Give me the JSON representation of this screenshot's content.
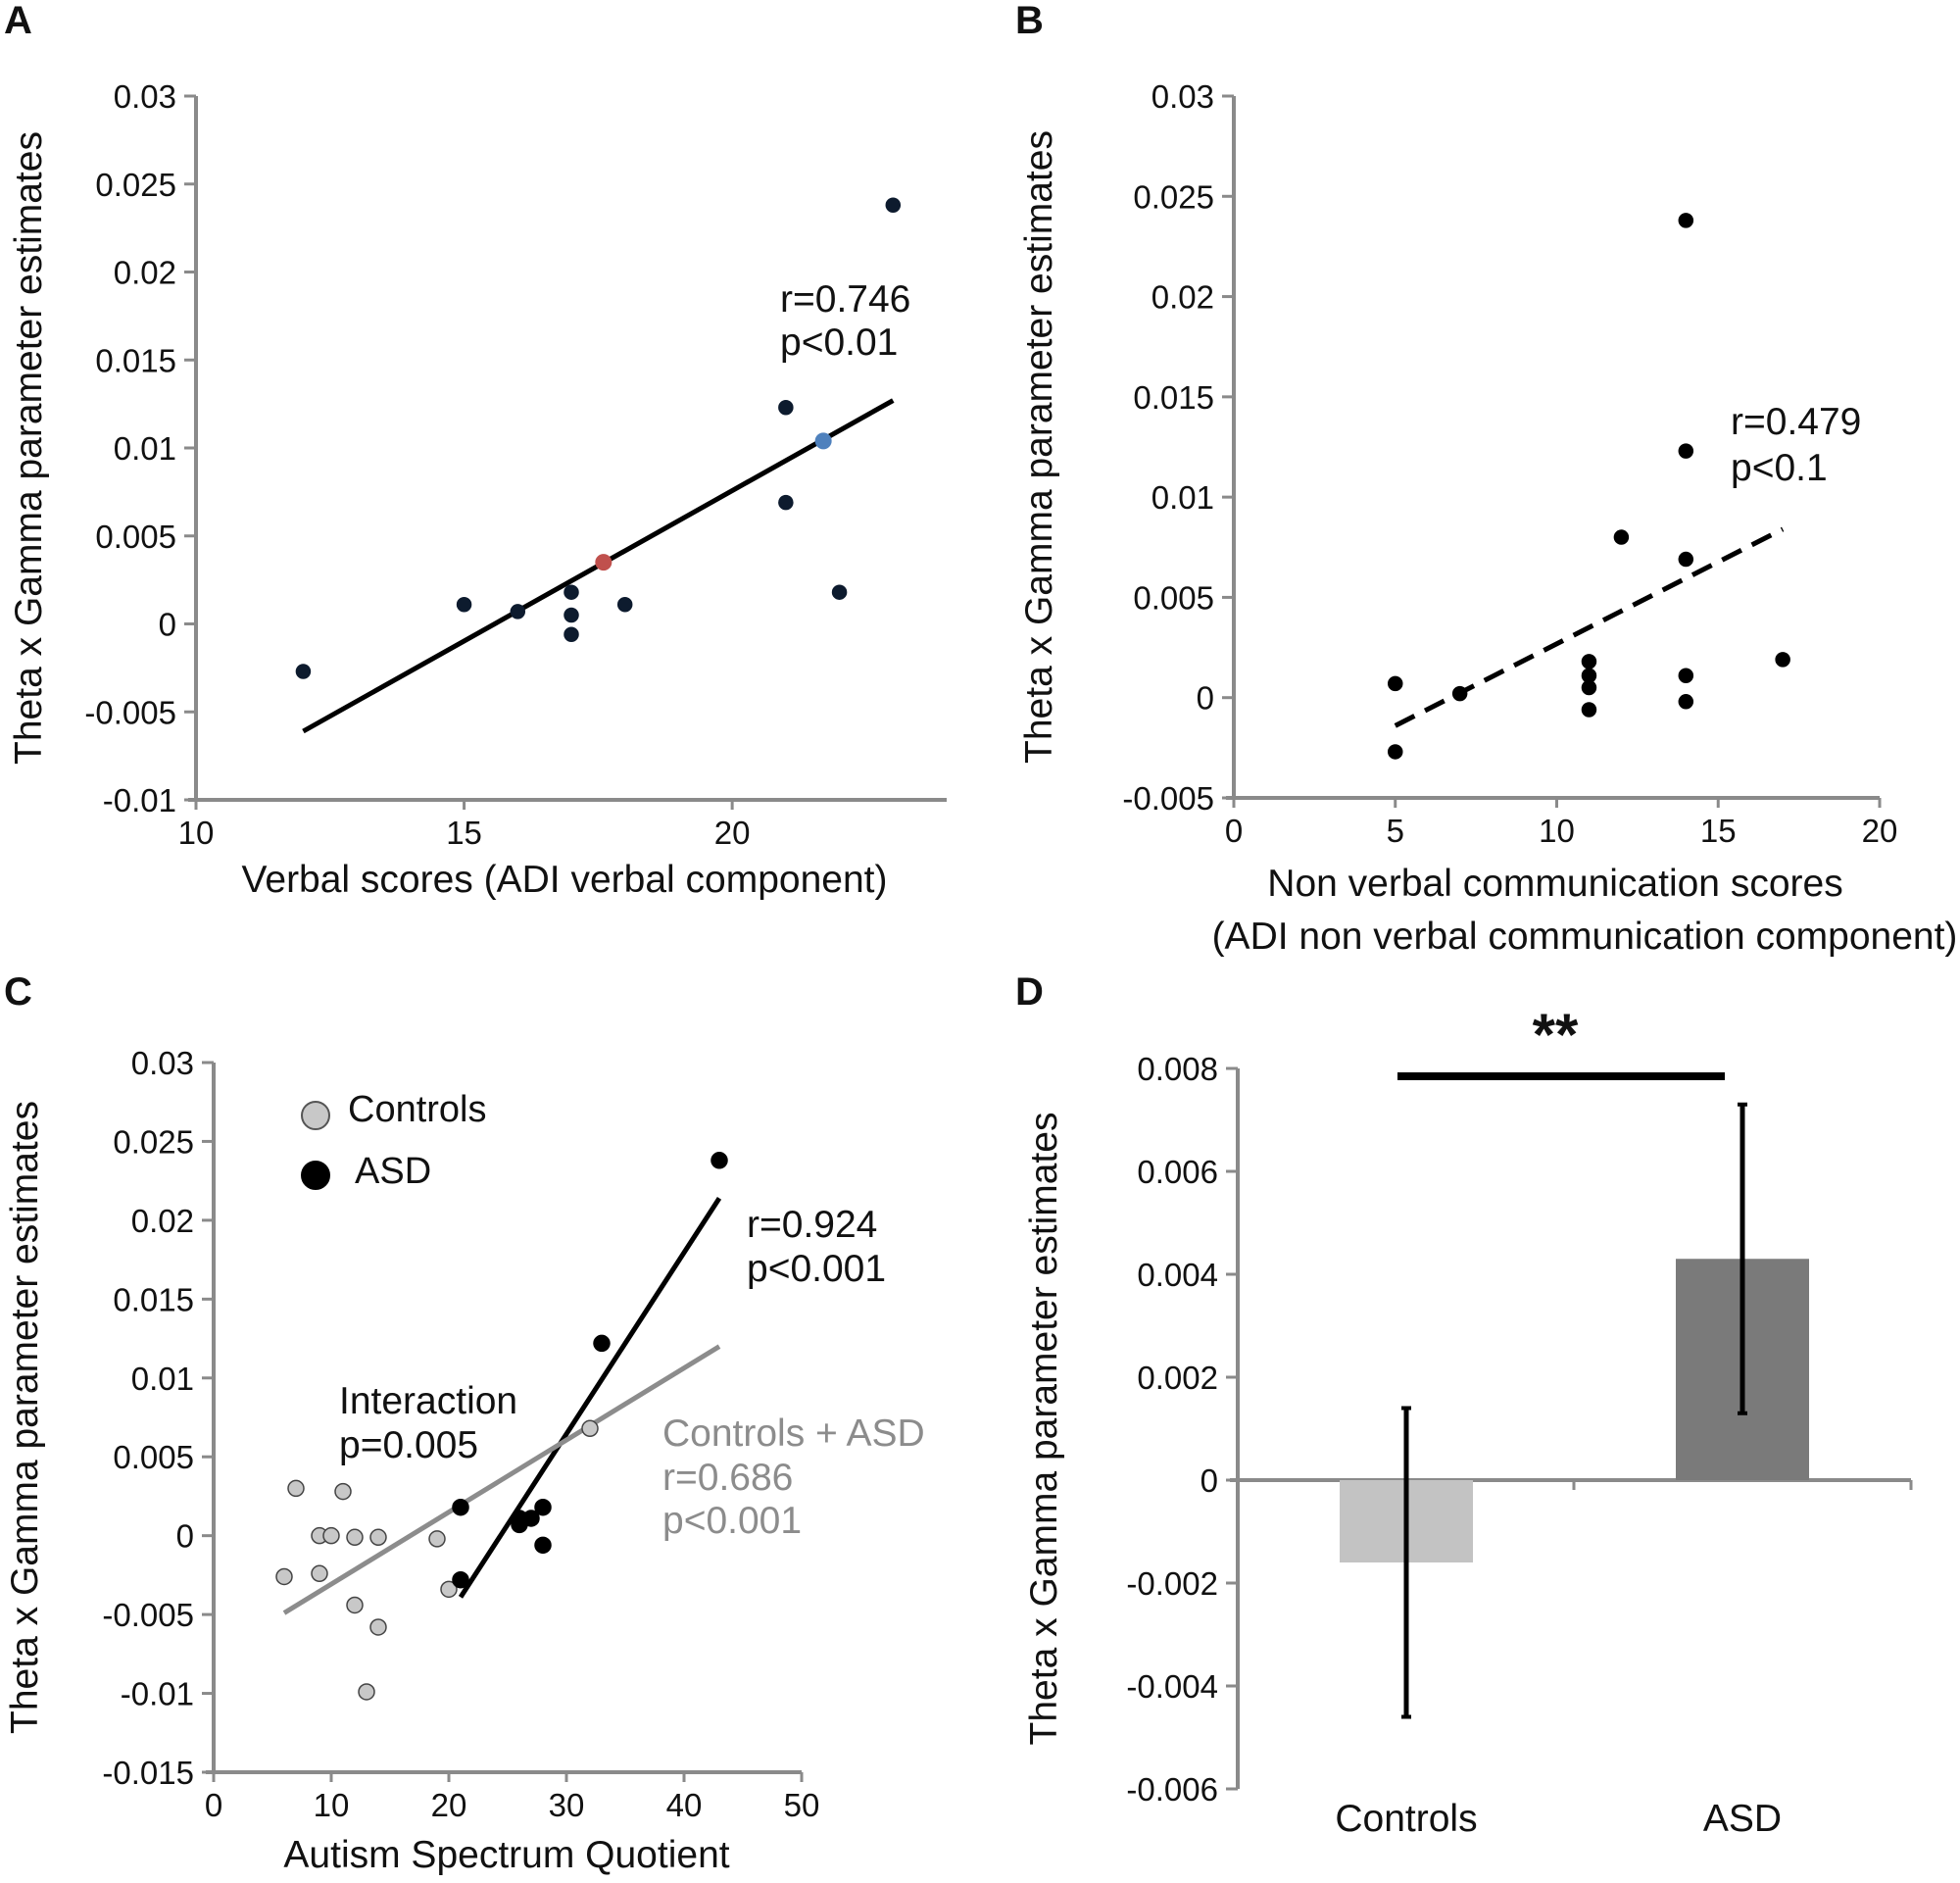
{
  "chart_data": [
    {
      "panel": "A",
      "type": "scatter",
      "xlabel": "Verbal scores (ADI verbal component)",
      "ylabel": "Theta x Gamma parameter estimates",
      "xlim": [
        10,
        24
      ],
      "ylim": [
        -0.01,
        0.03
      ],
      "xticks": [
        "10",
        "15",
        "20"
      ],
      "yticks": [
        "-0.01",
        "-0.005",
        "0",
        "0.005",
        "0.01",
        "0.015",
        "0.02",
        "0.025",
        "0.03"
      ],
      "points": [
        {
          "x": 12,
          "y": -0.0027
        },
        {
          "x": 15,
          "y": 0.0011
        },
        {
          "x": 16,
          "y": 0.0007
        },
        {
          "x": 17,
          "y": 0.0018
        },
        {
          "x": 17,
          "y": 0.0005
        },
        {
          "x": 17,
          "y": -0.0006
        },
        {
          "x": 18,
          "y": 0.0011
        },
        {
          "x": 21,
          "y": 0.0123
        },
        {
          "x": 21,
          "y": 0.0069
        },
        {
          "x": 22,
          "y": 0.0018
        },
        {
          "x": 23,
          "y": 0.0238
        }
      ],
      "highlighted_points": [
        {
          "x": 17.6,
          "y": 0.0035,
          "color": "#c0504d"
        },
        {
          "x": 21.7,
          "y": 0.0104,
          "color": "#4f81bd"
        }
      ],
      "fit_line": {
        "x": [
          12,
          23
        ],
        "y": [
          -0.0061,
          0.0127
        ],
        "style": "solid"
      },
      "annotation": [
        "r=0.746",
        "p<0.01"
      ]
    },
    {
      "panel": "B",
      "type": "scatter",
      "xlabel": "Non verbal communication scores",
      "xlabel2": "(ADI non verbal communication component)",
      "ylabel": "Theta x Gamma parameter estimates",
      "xlim": [
        0,
        20
      ],
      "ylim": [
        -0.005,
        0.03
      ],
      "xticks": [
        "0",
        "5",
        "10",
        "15",
        "20"
      ],
      "yticks": [
        "-0.005",
        "0",
        "0.005",
        "0.01",
        "0.015",
        "0.02",
        "0.025",
        "0.03"
      ],
      "points": [
        {
          "x": 5,
          "y": 0.0007
        },
        {
          "x": 5,
          "y": -0.0027
        },
        {
          "x": 7,
          "y": 0.0002
        },
        {
          "x": 11,
          "y": 0.0018
        },
        {
          "x": 11,
          "y": 0.0011
        },
        {
          "x": 11,
          "y": 0.0005
        },
        {
          "x": 11,
          "y": -0.0006
        },
        {
          "x": 12,
          "y": 0.008
        },
        {
          "x": 14,
          "y": 0.0238
        },
        {
          "x": 14,
          "y": 0.0123
        },
        {
          "x": 14,
          "y": 0.0069
        },
        {
          "x": 14,
          "y": 0.0011
        },
        {
          "x": 14,
          "y": -0.0002
        },
        {
          "x": 17,
          "y": 0.0019
        }
      ],
      "fit_line": {
        "x": [
          5,
          17
        ],
        "y": [
          -0.0014,
          0.0084
        ],
        "style": "dashed"
      },
      "annotation": [
        "r=0.479",
        "p<0.1"
      ]
    },
    {
      "panel": "C",
      "type": "scatter",
      "xlabel": "Autism Spectrum Quotient",
      "ylabel": "Theta x Gamma parameter estimates",
      "xlim": [
        0,
        50
      ],
      "ylim": [
        -0.015,
        0.03
      ],
      "xticks": [
        "0",
        "10",
        "20",
        "30",
        "40",
        "50"
      ],
      "yticks": [
        "-0.015",
        "-0.01",
        "-0.005",
        "0",
        "0.005",
        "0.01",
        "0.015",
        "0.02",
        "0.025",
        "0.03"
      ],
      "legend": [
        {
          "label": "Controls",
          "color": "#c8c8c8"
        },
        {
          "label": "ASD",
          "color": "#000000"
        }
      ],
      "series": [
        {
          "name": "Controls",
          "color": "#c8c8c8",
          "points": [
            {
              "x": 6,
              "y": -0.0026
            },
            {
              "x": 7,
              "y": 0.003
            },
            {
              "x": 9,
              "y": 0.0
            },
            {
              "x": 9,
              "y": -0.0024
            },
            {
              "x": 10,
              "y": 0.0
            },
            {
              "x": 11,
              "y": 0.0028
            },
            {
              "x": 12,
              "y": -0.0001
            },
            {
              "x": 12,
              "y": -0.0044
            },
            {
              "x": 13,
              "y": -0.0099
            },
            {
              "x": 14,
              "y": -0.0001
            },
            {
              "x": 14,
              "y": -0.0058
            },
            {
              "x": 19,
              "y": -0.0002
            },
            {
              "x": 20,
              "y": -0.0034
            },
            {
              "x": 32,
              "y": 0.0068
            }
          ]
        },
        {
          "name": "ASD",
          "color": "#000000",
          "points": [
            {
              "x": 21,
              "y": 0.0018
            },
            {
              "x": 21,
              "y": -0.0028
            },
            {
              "x": 26,
              "y": 0.0007
            },
            {
              "x": 26,
              "y": 0.0011
            },
            {
              "x": 27,
              "y": 0.0011
            },
            {
              "x": 28,
              "y": 0.0018
            },
            {
              "x": 28,
              "y": -0.0006
            },
            {
              "x": 33,
              "y": 0.0122
            },
            {
              "x": 43,
              "y": 0.0238
            }
          ]
        }
      ],
      "fit_lines": [
        {
          "name": "ASD",
          "color": "#000000",
          "x": [
            21,
            43
          ],
          "y": [
            -0.0039,
            0.0214
          ]
        },
        {
          "name": "Controls + ASD",
          "color": "#8c8c8c",
          "x": [
            6,
            43
          ],
          "y": [
            -0.0049,
            0.012
          ]
        }
      ],
      "annotations": {
        "asd": [
          "r=0.924",
          "p<0.001"
        ],
        "interaction": [
          "Interaction",
          "p=0.005"
        ],
        "combined": [
          "Controls + ASD",
          "r=0.686",
          "p<0.001"
        ]
      }
    },
    {
      "panel": "D",
      "type": "bar",
      "ylabel": "Theta x Gamma parameter estimates",
      "categories": [
        "Controls",
        "ASD"
      ],
      "values": [
        -0.0016,
        0.0043
      ],
      "errors": [
        {
          "low": -0.0046,
          "high": 0.0014
        },
        {
          "low": 0.0013,
          "high": 0.0073
        }
      ],
      "colors": [
        "#c3c3c3",
        "#7a7a7a"
      ],
      "ylim": [
        -0.006,
        0.008
      ],
      "yticks": [
        "-0.006",
        "-0.004",
        "-0.002",
        "0",
        "0.002",
        "0.004",
        "0.006",
        "0.008"
      ],
      "significance": "**"
    }
  ]
}
